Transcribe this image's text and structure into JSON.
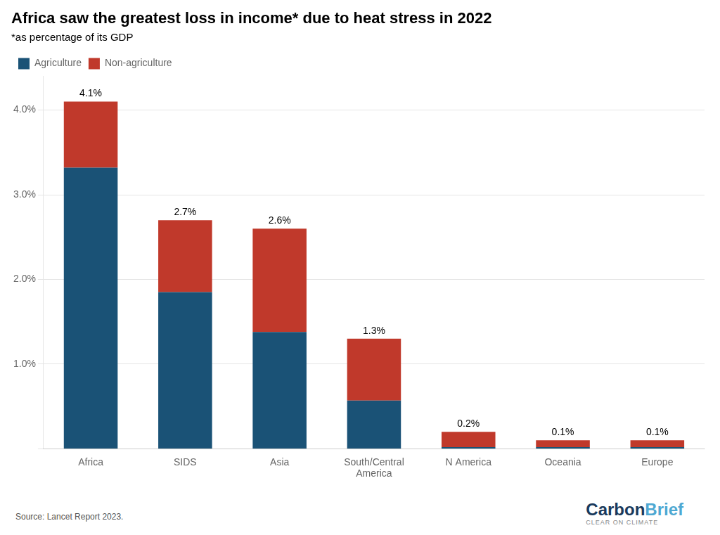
{
  "chart_data": {
    "type": "bar",
    "title": "Africa saw the greatest loss in income* due to heat stress in 2022",
    "subtitle": "*as percentage of its GDP",
    "categories": [
      "Africa",
      "SIDS",
      "Asia",
      "South/Central\nAmerica",
      "N America",
      "Oceania",
      "Europe"
    ],
    "series": [
      {
        "name": "Agriculture",
        "color": "#1a5276",
        "values": [
          3.32,
          1.85,
          1.38,
          0.57,
          0.02,
          0.02,
          0.02
        ]
      },
      {
        "name": "Non-agriculture",
        "color": "#c0392b",
        "values": [
          0.78,
          0.85,
          1.22,
          0.73,
          0.18,
          0.08,
          0.08
        ]
      }
    ],
    "totals": [
      4.1,
      2.7,
      2.6,
      1.3,
      0.2,
      0.1,
      0.1
    ],
    "total_labels": [
      "4.1%",
      "2.7%",
      "2.6%",
      "1.3%",
      "0.2%",
      "0.1%",
      "0.1%"
    ],
    "stacked": true,
    "ylim": [
      0,
      4.4
    ],
    "yticks": [
      {
        "value": 0,
        "label": ""
      },
      {
        "value": 1.0,
        "label": "1.0%"
      },
      {
        "value": 2.0,
        "label": "2.0%"
      },
      {
        "value": 3.0,
        "label": "3.0%"
      },
      {
        "value": 4.0,
        "label": "4.0%"
      }
    ],
    "grid": true,
    "legend": "upper left",
    "source": "Source: Lancet Report 2023.",
    "annotations": [
      {
        "text": "Carbon",
        "color": "#1a3a5c"
      },
      {
        "text": "Brief",
        "color": "#4ea8d2"
      },
      {
        "text": "CLEAR ON CLIMATE"
      }
    ]
  }
}
